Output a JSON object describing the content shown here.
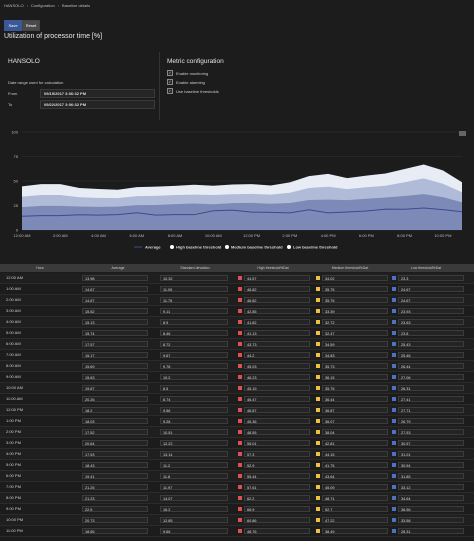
{
  "breadcrumb": [
    "HANSOLO",
    "Configuration",
    "Baseline details"
  ],
  "toolbar": {
    "save_label": "Save",
    "reset_label": "Reset"
  },
  "page_title": "Utilization of processor time [%]",
  "panel_left": {
    "title": "HANSOLO",
    "date_range_label": "Date range used for calculation",
    "from_label": "From",
    "from_value": "09/15/2017 3:06:32 PM",
    "to_label": "To",
    "to_value": "09/22/2017 3:06:32 PM"
  },
  "panel_right": {
    "title": "Metric configuration",
    "checkboxes": [
      {
        "label": "Enable monitoring",
        "checked": true
      },
      {
        "label": "Enable alarming",
        "checked": true
      },
      {
        "label": "Use baseline thresholds",
        "checked": true
      }
    ]
  },
  "colors": {
    "high": "#e05050",
    "medium": "#f0c040",
    "low": "#5070c0"
  },
  "chart_data": {
    "type": "area",
    "x": [
      "12:00 AM",
      "1:00 AM",
      "2:00 AM",
      "3:00 AM",
      "4:00 AM",
      "5:00 AM",
      "6:00 AM",
      "7:00 AM",
      "8:00 AM",
      "9:00 AM",
      "10:00 AM",
      "11:00 AM",
      "12:00 PM",
      "1:00 PM",
      "2:00 PM",
      "3:00 PM",
      "4:00 PM",
      "5:00 PM",
      "6:00 PM",
      "7:00 PM",
      "8:00 PM",
      "9:00 PM",
      "10:00 PM",
      "11:00 PM"
    ],
    "x_tick_labels": [
      "12:00 AM",
      "2:00 AM",
      "4:00 AM",
      "6:00 AM",
      "8:00 AM",
      "10:00 AM",
      "12:00 PM",
      "2:00 PM",
      "4:00 PM",
      "6:00 PM",
      "8:00 PM",
      "10:00 PM"
    ],
    "y_ticks": [
      "0",
      "25",
      "50",
      "75",
      "100"
    ],
    "ylim": [
      0,
      100
    ],
    "series": [
      {
        "name": "Average",
        "values": [
          13.98,
          14.67,
          14.67,
          15.52,
          15.13,
          15.74,
          17.57,
          15.17,
          15.69,
          15.63,
          19.67,
          20.26,
          18.2,
          18.03,
          17.52,
          20.64,
          17.53,
          18.43,
          19.41,
          21.25,
          21.23,
          22.5,
          20.73,
          18.65
        ]
      },
      {
        "name": "High baseline threshold",
        "values": [
          44.57,
          46.82,
          46.82,
          42.85,
          41.82,
          41.13,
          43.73,
          44.2,
          45.03,
          46.23,
          45.19,
          46.47,
          46.87,
          45.36,
          48.55,
          55.01,
          57.3,
          52.9,
          55.44,
          57.61,
          62.2,
          66.9,
          60.86,
          48.76
        ]
      },
      {
        "name": "Medium baseline threshold",
        "values": [
          34.02,
          35.75,
          35.75,
          33.39,
          32.72,
          32.47,
          34.59,
          34.83,
          35.73,
          36.15,
          35.75,
          36.44,
          36.87,
          36.07,
          38.04,
          42.81,
          44.15,
          41.75,
          43.64,
          45.09,
          48.71,
          52.7,
          47.22,
          38.49
        ]
      },
      {
        "name": "Low baseline threshold",
        "values": [
          23.3,
          24.67,
          24.67,
          23.93,
          23.63,
          23.8,
          25.43,
          25.46,
          26.44,
          27.06,
          26.31,
          27.41,
          27.71,
          26.79,
          27.53,
          30.57,
          31.01,
          30.54,
          31.85,
          33.12,
          34.64,
          36.56,
          33.58,
          28.31
        ]
      }
    ],
    "legend_placement": "bottom"
  },
  "table": {
    "headers": [
      "Hour",
      "Average",
      "Standard deviation",
      "High threshold%Dat",
      "Medium threshold%Dat",
      "Low threshold%Dat"
    ],
    "rows": [
      {
        "hour": "12:00 AM",
        "avg": "13.98",
        "std": "10.32",
        "high": "44.57",
        "med": "34.02",
        "low": "23.3"
      },
      {
        "hour": "1:00 AM",
        "avg": "14.67",
        "std": "11.05",
        "high": "46.82",
        "med": "35.75",
        "low": "24.67"
      },
      {
        "hour": "2:00 AM",
        "avg": "14.67",
        "std": "11.75",
        "high": "46.82",
        "med": "35.75",
        "low": "24.67"
      },
      {
        "hour": "3:00 AM",
        "avg": "15.52",
        "std": "9.11",
        "high": "42.85",
        "med": "33.39",
        "low": "23.93"
      },
      {
        "hour": "4:00 AM",
        "avg": "15.13",
        "std": "8.9",
        "high": "41.82",
        "med": "32.72",
        "low": "23.63"
      },
      {
        "hour": "5:00 AM",
        "avg": "15.74",
        "std": "8.46",
        "high": "41.13",
        "med": "32.47",
        "low": "23.8"
      },
      {
        "hour": "6:00 AM",
        "avg": "17.57",
        "std": "8.72",
        "high": "43.73",
        "med": "34.59",
        "low": "25.43"
      },
      {
        "hour": "7:00 AM",
        "avg": "15.17",
        "std": "9.67",
        "high": "44.2",
        "med": "34.83",
        "low": "25.46"
      },
      {
        "hour": "8:00 AM",
        "avg": "15.69",
        "std": "9.78",
        "high": "45.03",
        "med": "35.73",
        "low": "26.44"
      },
      {
        "hour": "9:00 AM",
        "avg": "15.63",
        "std": "10.2",
        "high": "46.23",
        "med": "36.15",
        "low": "27.06"
      },
      {
        "hour": "10:00 AM",
        "avg": "19.67",
        "std": "8.5",
        "high": "45.19",
        "med": "35.75",
        "low": "26.31"
      },
      {
        "hour": "11:00 AM",
        "avg": "20.26",
        "std": "8.74",
        "high": "46.47",
        "med": "36.44",
        "low": "27.41"
      },
      {
        "hour": "12:00 PM",
        "avg": "18.2",
        "std": "9.56",
        "high": "46.87",
        "med": "36.87",
        "low": "27.71"
      },
      {
        "hour": "1:00 PM",
        "avg": "18.03",
        "std": "9.28",
        "high": "45.36",
        "med": "36.07",
        "low": "26.79"
      },
      {
        "hour": "2:00 PM",
        "avg": "17.52",
        "std": "10.51",
        "high": "48.55",
        "med": "38.04",
        "low": "27.53"
      },
      {
        "hour": "3:00 PM",
        "avg": "20.64",
        "std": "12.22",
        "high": "55.01",
        "med": "42.81",
        "low": "30.57"
      },
      {
        "hour": "4:00 PM",
        "avg": "17.53",
        "std": "13.14",
        "high": "57.3",
        "med": "44.15",
        "low": "31.01"
      },
      {
        "hour": "5:00 PM",
        "avg": "18.43",
        "std": "11.2",
        "high": "52.9",
        "med": "41.75",
        "low": "30.54"
      },
      {
        "hour": "6:00 PM",
        "avg": "19.41",
        "std": "11.8",
        "high": "55.44",
        "med": "43.64",
        "low": "31.85"
      },
      {
        "hour": "7:00 PM",
        "avg": "21.25",
        "std": "11.97",
        "high": "57.61",
        "med": "45.09",
        "low": "33.12"
      },
      {
        "hour": "8:00 PM",
        "avg": "21.23",
        "std": "14.07",
        "high": "62.2",
        "med": "48.71",
        "low": "34.64"
      },
      {
        "hour": "9:00 PM",
        "avg": "22.5",
        "std": "16.2",
        "high": "66.9",
        "med": "52.7",
        "low": "36.56"
      },
      {
        "hour": "10:00 PM",
        "avg": "20.73",
        "std": "12.85",
        "high": "60.86",
        "med": "47.22",
        "low": "33.58"
      },
      {
        "hour": "11:00 PM",
        "avg": "18.65",
        "std": "9.66",
        "high": "48.76",
        "med": "38.49",
        "low": "28.31"
      }
    ]
  }
}
